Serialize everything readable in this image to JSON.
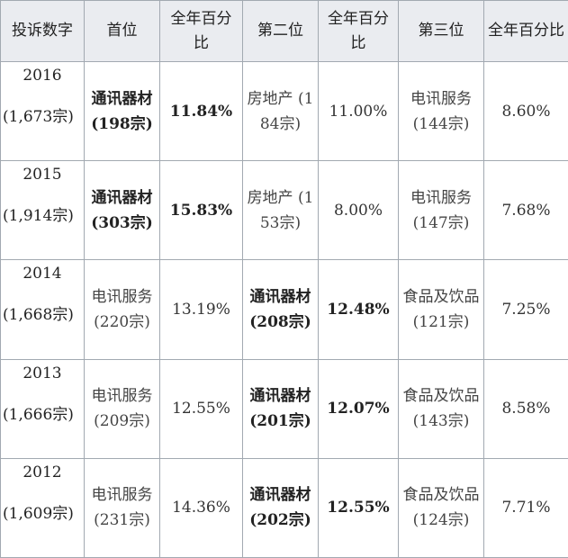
{
  "headers": [
    "投诉数字",
    "首位",
    "全年百分比",
    "第二位",
    "全年百分比",
    "第三位",
    "全年百分比"
  ],
  "rows": [
    {
      "year": "2016",
      "count": "(1,673宗)",
      "first": "通讯器材 (198宗)",
      "first_pct": "11.84%",
      "second": "房地产 (184宗)",
      "second_pct": "11.00%",
      "third": "电讯服务 (144宗)",
      "third_pct": "8.60%"
    },
    {
      "year": "2015",
      "count": "(1,914宗)",
      "first": "通讯器材 (303宗)",
      "first_pct": "15.83%",
      "second": "房地产 (153宗)",
      "second_pct": "8.00%",
      "third": "电讯服务 (147宗)",
      "third_pct": "7.68%"
    },
    {
      "year": "2014",
      "count": "(1,668宗)",
      "first": "电讯服务 (220宗)",
      "first_pct": "13.19%",
      "second": "通讯器材 (208宗)",
      "second_pct": "12.48%",
      "third": "食品及饮品 (121宗)",
      "third_pct": "7.25%"
    },
    {
      "year": "2013",
      "count": "(1,666宗)",
      "first": "电讯服务 (209宗)",
      "first_pct": "12.55%",
      "second": "通讯器材 (201宗)",
      "second_pct": "12.07%",
      "third": "食品及饮品 (143宗)",
      "third_pct": "8.58%"
    },
    {
      "year": "2012",
      "count": "(1,609宗)",
      "first": "电讯服务 (231宗)",
      "first_pct": "14.36%",
      "second": "通讯器材 (202宗)",
      "second_pct": "12.55%",
      "third": "食品及饮品 (124宗)",
      "third_pct": "7.71%"
    }
  ]
}
